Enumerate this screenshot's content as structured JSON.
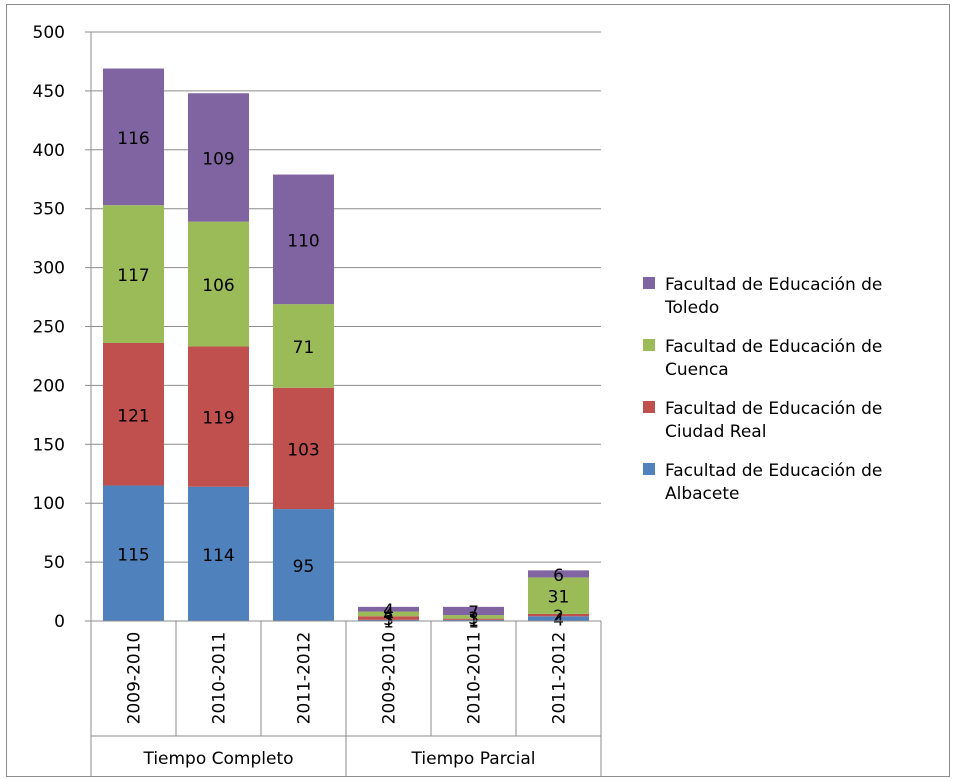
{
  "chart_data": {
    "type": "bar",
    "stacked": true,
    "groups": [
      {
        "label": "Tiempo Completo",
        "categories": [
          "2009-2010",
          "2010-2011",
          "2011-2012"
        ]
      },
      {
        "label": "Tiempo Parcial",
        "categories": [
          "2009-2010",
          "2010-2011",
          "2011-2012"
        ]
      }
    ],
    "series": [
      {
        "name": "Facultad de Educación de Albacete",
        "color": "#4f81bd",
        "values": [
          115,
          114,
          95,
          1,
          1,
          4
        ]
      },
      {
        "name": "Facultad de Educación de Ciudad Real",
        "color": "#c0504d",
        "values": [
          121,
          119,
          103,
          3,
          1,
          2
        ]
      },
      {
        "name": "Facultad de Educación de Cuenca",
        "color": "#9bbb59",
        "values": [
          117,
          106,
          71,
          4,
          3,
          31
        ]
      },
      {
        "name": "Facultad de Educación de Toledo",
        "color": "#8064a2",
        "values": [
          116,
          109,
          110,
          4,
          7,
          6
        ]
      }
    ],
    "yticks": [
      0,
      50,
      100,
      150,
      200,
      250,
      300,
      350,
      400,
      450,
      500
    ],
    "ylim": [
      0,
      500
    ],
    "grid": true,
    "legend": "right",
    "title": "",
    "xlabel": "",
    "ylabel": ""
  }
}
